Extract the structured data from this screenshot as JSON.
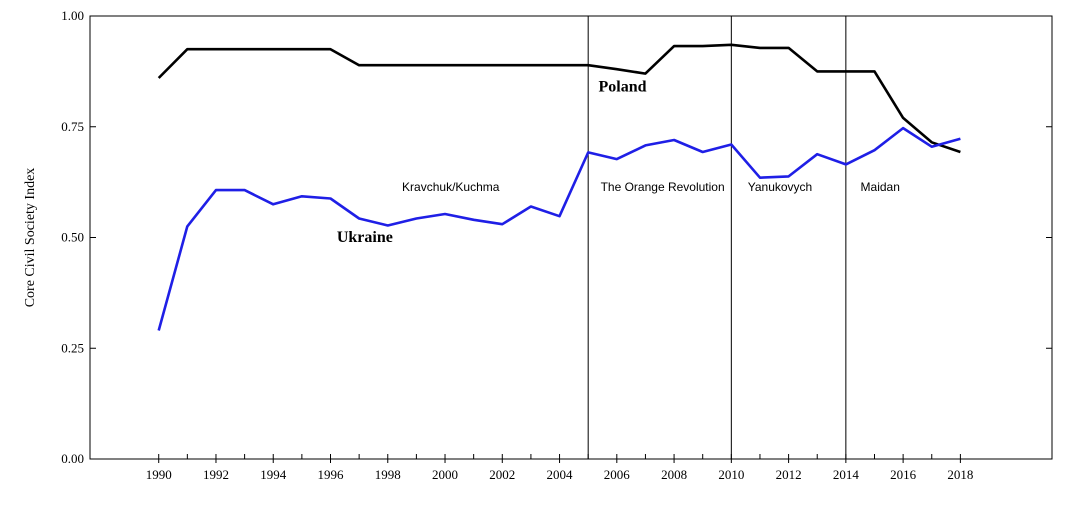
{
  "chart_data": {
    "type": "line",
    "title": "",
    "xlabel": "",
    "ylabel": "Core Civil Society Index",
    "ylim": [
      0,
      1
    ],
    "grid": false,
    "x": [
      1990,
      1991,
      1992,
      1993,
      1994,
      1995,
      1996,
      1997,
      1998,
      1999,
      2000,
      2001,
      2002,
      2003,
      2004,
      2005,
      2006,
      2007,
      2008,
      2009,
      2010,
      2011,
      2012,
      2013,
      2014,
      2015,
      2016,
      2017,
      2018
    ],
    "x_ticks": [
      "1990",
      "1992",
      "1994",
      "1996",
      "1998",
      "2000",
      "2002",
      "2004",
      "2006",
      "2008",
      "2010",
      "2012",
      "2014",
      "2016",
      "2018"
    ],
    "y_ticks": [
      "0.00",
      "0.25",
      "0.50",
      "0.75",
      "1.00"
    ],
    "series": [
      {
        "name": "Poland",
        "color": "#000000",
        "values": [
          0.86,
          0.925,
          0.925,
          0.925,
          0.925,
          0.925,
          0.925,
          0.889,
          0.889,
          0.889,
          0.889,
          0.889,
          0.889,
          0.889,
          0.889,
          0.889,
          0.88,
          0.87,
          0.932,
          0.932,
          0.935,
          0.928,
          0.928,
          0.875,
          0.875,
          0.875,
          0.77,
          0.715,
          0.693
        ]
      },
      {
        "name": "Ukraine",
        "color": "#1f1fe6",
        "values": [
          0.29,
          0.525,
          0.607,
          0.607,
          0.575,
          0.593,
          0.588,
          0.543,
          0.527,
          0.543,
          0.553,
          0.54,
          0.53,
          0.57,
          0.548,
          0.692,
          0.677,
          0.708,
          0.72,
          0.693,
          0.71,
          0.635,
          0.638,
          0.688,
          0.665,
          0.697,
          0.747,
          0.705,
          0.723
        ]
      }
    ],
    "vertical_lines": [
      2005,
      2010,
      2014
    ],
    "annotations": [
      {
        "text": "Kravchuk/Kuchma",
        "x": 2000.2,
        "y": 0.605
      },
      {
        "text": "The Orange Revolution",
        "x": 2007.6,
        "y": 0.605
      },
      {
        "text": "Yanukovych",
        "x": 2011.7,
        "y": 0.605
      },
      {
        "text": "Maidan",
        "x": 2015.2,
        "y": 0.605
      }
    ],
    "series_labels": [
      {
        "text": "Poland",
        "x": 2006.2,
        "y": 0.83
      },
      {
        "text": "Ukraine",
        "x": 1997.2,
        "y": 0.49
      }
    ]
  }
}
